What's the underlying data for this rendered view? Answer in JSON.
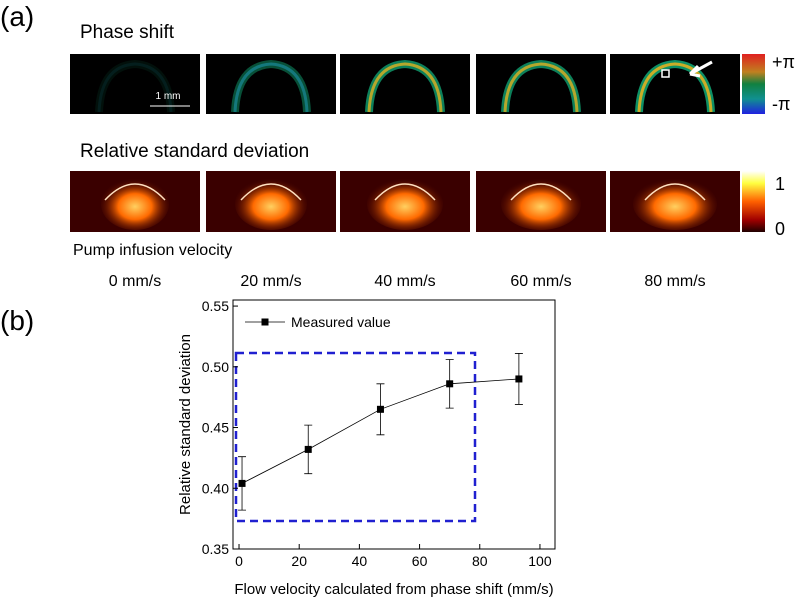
{
  "panel_a": {
    "label": "(a)",
    "phase_title": "Phase shift",
    "rsd_title": "Relative standard deviation",
    "scale_bar": "1 mm",
    "phase_max": "+π",
    "phase_min": "-π",
    "rsd_max": "1",
    "rsd_min": "0",
    "pump_label": "Pump infusion velocity",
    "velocities": [
      "0 mm/s",
      "20 mm/s",
      "40 mm/s",
      "60 mm/s",
      "80 mm/s"
    ]
  },
  "panel_b": {
    "label": "(b)"
  },
  "chart_data": {
    "type": "line",
    "x_label": "Flow velocity calculated from phase shift (mm/s)",
    "y_label": "Relative standard deviation",
    "x": [
      1,
      23,
      47,
      70,
      93
    ],
    "series": [
      {
        "name": "Measured value",
        "color": "#000000",
        "values": [
          0.404,
          0.432,
          0.465,
          0.486,
          0.49
        ],
        "errors": [
          0.022,
          0.02,
          0.021,
          0.02,
          0.021
        ]
      }
    ],
    "xlim": [
      -2,
      105
    ],
    "xticks": [
      0,
      20,
      40,
      60,
      80,
      100
    ],
    "ylim": [
      0.35,
      0.555
    ],
    "yticks": [
      0.35,
      {
        "value": 0.4,
        "label": "0.40"
      },
      0.45,
      {
        "value": 0.5,
        "label": "0.50"
      },
      0.55
    ],
    "legend": "upper left"
  }
}
